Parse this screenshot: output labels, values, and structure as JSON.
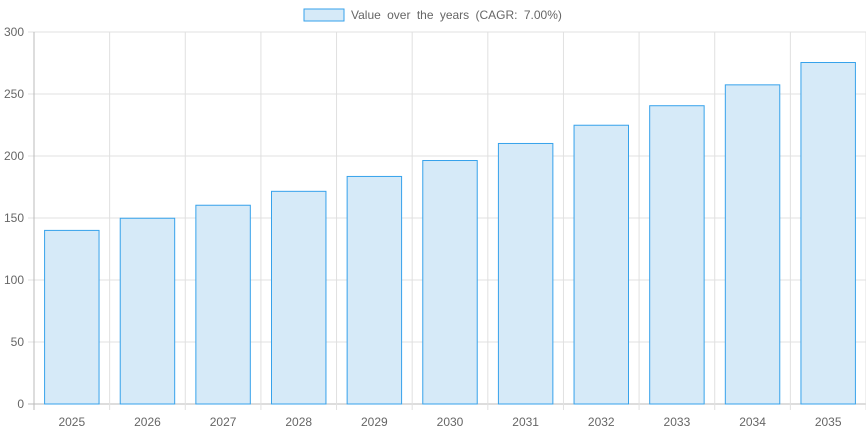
{
  "chart_data": {
    "type": "bar",
    "title": "",
    "legend": {
      "label": "Value over the years (CAGR: 7.00%)",
      "position": "top-center"
    },
    "categories": [
      "2025",
      "2026",
      "2027",
      "2028",
      "2029",
      "2030",
      "2031",
      "2032",
      "2033",
      "2034",
      "2035"
    ],
    "series": [
      {
        "name": "Value over the years (CAGR: 7.00%)",
        "values": [
          140,
          149.8,
          160.29,
          171.51,
          183.51,
          196.36,
          210.1,
          224.81,
          240.55,
          257.38,
          275.4
        ]
      }
    ],
    "ylim": [
      0,
      300
    ],
    "yticks": [
      "0",
      "50",
      "100",
      "150",
      "200",
      "250",
      "300"
    ],
    "grid": true,
    "colors": {
      "bar_fill": "#d6eaf8",
      "bar_border": "#36a2eb",
      "grid": "#e0e0e0"
    }
  }
}
